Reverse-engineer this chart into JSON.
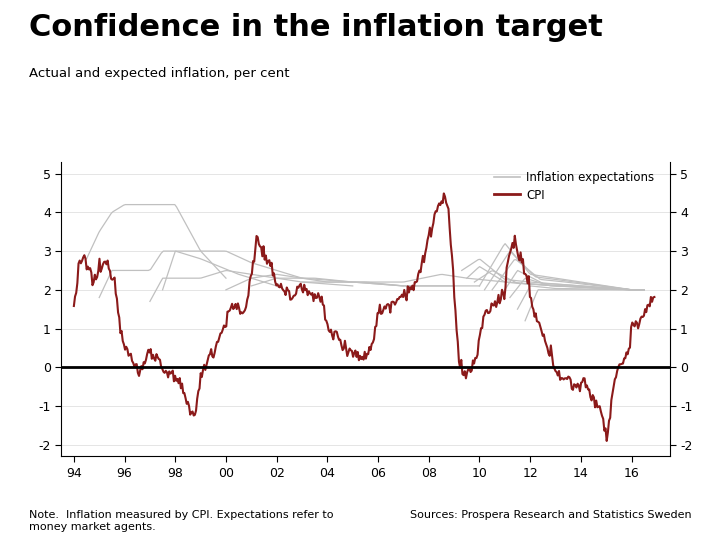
{
  "title": "Confidence in the inflation target",
  "subtitle": "Actual and expected inflation, per cent",
  "note": "Note.  Inflation measured by CPI. Expectations refer to\nmoney market agents.",
  "source": "Sources: Prospera Research and Statistics Sweden",
  "title_fontsize": 22,
  "subtitle_fontsize": 9.5,
  "note_fontsize": 8,
  "background_color": "#ffffff",
  "footer_bar_color": "#1d3d7a",
  "cpi_color": "#8b1a1a",
  "exp_color": "#c0c0c0",
  "ylim": [
    -2.3,
    5.3
  ],
  "yticks": [
    -2,
    -1,
    0,
    1,
    2,
    3,
    4,
    5
  ],
  "xtick_labels": [
    "94",
    "96",
    "98",
    "00",
    "02",
    "04",
    "06",
    "08",
    "10",
    "12",
    "14",
    "16"
  ]
}
